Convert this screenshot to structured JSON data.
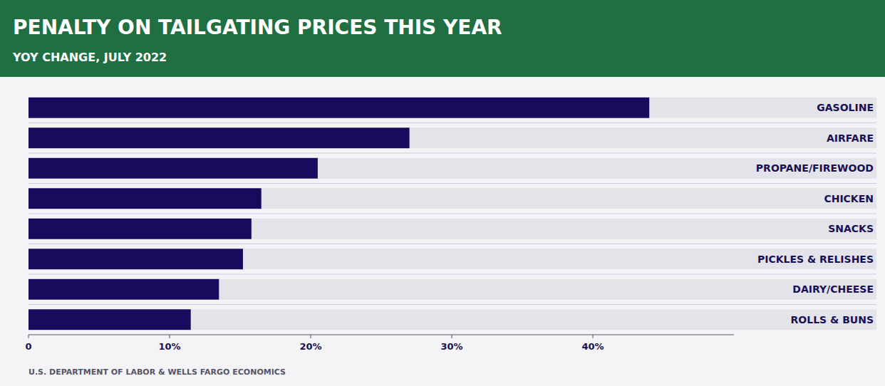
{
  "chart_data": {
    "type": "bar",
    "orientation": "horizontal",
    "title": "PENALTY ON TAILGATING PRICES THIS YEAR",
    "subtitle": "YOY CHANGE, JULY 2022",
    "annotations": [
      "U.S. DEPARTMENT OF LABOR & WELLS FARGO ECONOMICS"
    ],
    "categories": [
      "GASOLINE",
      "AIRFARE",
      "PROPANE/FIREWOOD",
      "CHICKEN",
      "SNACKS",
      "PICKLES & RELISHES",
      "DAIRY/CHEESE",
      "ROLLS & BUNS"
    ],
    "values": [
      44.0,
      27.0,
      20.5,
      16.5,
      15.8,
      15.2,
      13.5,
      11.5
    ],
    "color": "#1a0a5e",
    "xlim": [
      0,
      50
    ],
    "xticks": [
      0,
      {
        "value": 10,
        "label": "10%"
      },
      {
        "value": 20,
        "label": "20%"
      },
      {
        "value": 30,
        "label": "30%"
      },
      {
        "value": 40,
        "label": "40%"
      }
    ],
    "grid": false
  }
}
